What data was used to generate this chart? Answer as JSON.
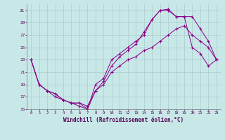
{
  "xlabel": "Windchill (Refroidissement éolien,°C)",
  "bg_color": "#c8e8e8",
  "line_color": "#880088",
  "grid_color": "#aacccc",
  "xlim": [
    -0.5,
    23.5
  ],
  "ylim": [
    15,
    32
  ],
  "yticks": [
    15,
    17,
    19,
    21,
    23,
    25,
    27,
    29,
    31
  ],
  "xticks": [
    0,
    1,
    2,
    3,
    4,
    5,
    6,
    7,
    8,
    9,
    10,
    11,
    12,
    13,
    14,
    15,
    16,
    17,
    18,
    19,
    20,
    21,
    22,
    23
  ],
  "series": [
    {
      "x": [
        0,
        1,
        2,
        3,
        4,
        5,
        6,
        7,
        8,
        9,
        10,
        11,
        12,
        13,
        14,
        15,
        16,
        17,
        18,
        19,
        20,
        21,
        22,
        23
      ],
      "y": [
        23,
        19,
        18,
        17.5,
        16.5,
        16,
        16,
        15.5,
        18,
        19,
        21,
        22,
        23,
        23.5,
        24.5,
        25,
        26,
        27,
        28,
        28.5,
        27,
        26,
        25,
        23
      ]
    },
    {
      "x": [
        0,
        1,
        2,
        3,
        4,
        5,
        6,
        7,
        8,
        9,
        10,
        11,
        12,
        13,
        14,
        15,
        16,
        17,
        18,
        19,
        20,
        21,
        22,
        23
      ],
      "y": [
        23,
        19,
        18,
        17.5,
        16.5,
        16,
        16,
        15,
        18,
        19.5,
        22,
        23.5,
        24.5,
        25.5,
        27.5,
        29.5,
        31,
        31,
        30,
        30,
        25,
        24,
        22,
        23
      ]
    },
    {
      "x": [
        0,
        1,
        2,
        3,
        4,
        5,
        6,
        7,
        8,
        9,
        10,
        11,
        12,
        13,
        14,
        15,
        16,
        17,
        18,
        19,
        20,
        21,
        22,
        23
      ],
      "y": [
        23,
        19,
        18,
        17,
        16.5,
        16,
        15.5,
        15,
        19,
        20,
        23,
        24,
        25,
        26,
        27,
        29.5,
        31,
        31.2,
        30,
        30,
        30,
        28,
        26,
        23
      ]
    }
  ]
}
